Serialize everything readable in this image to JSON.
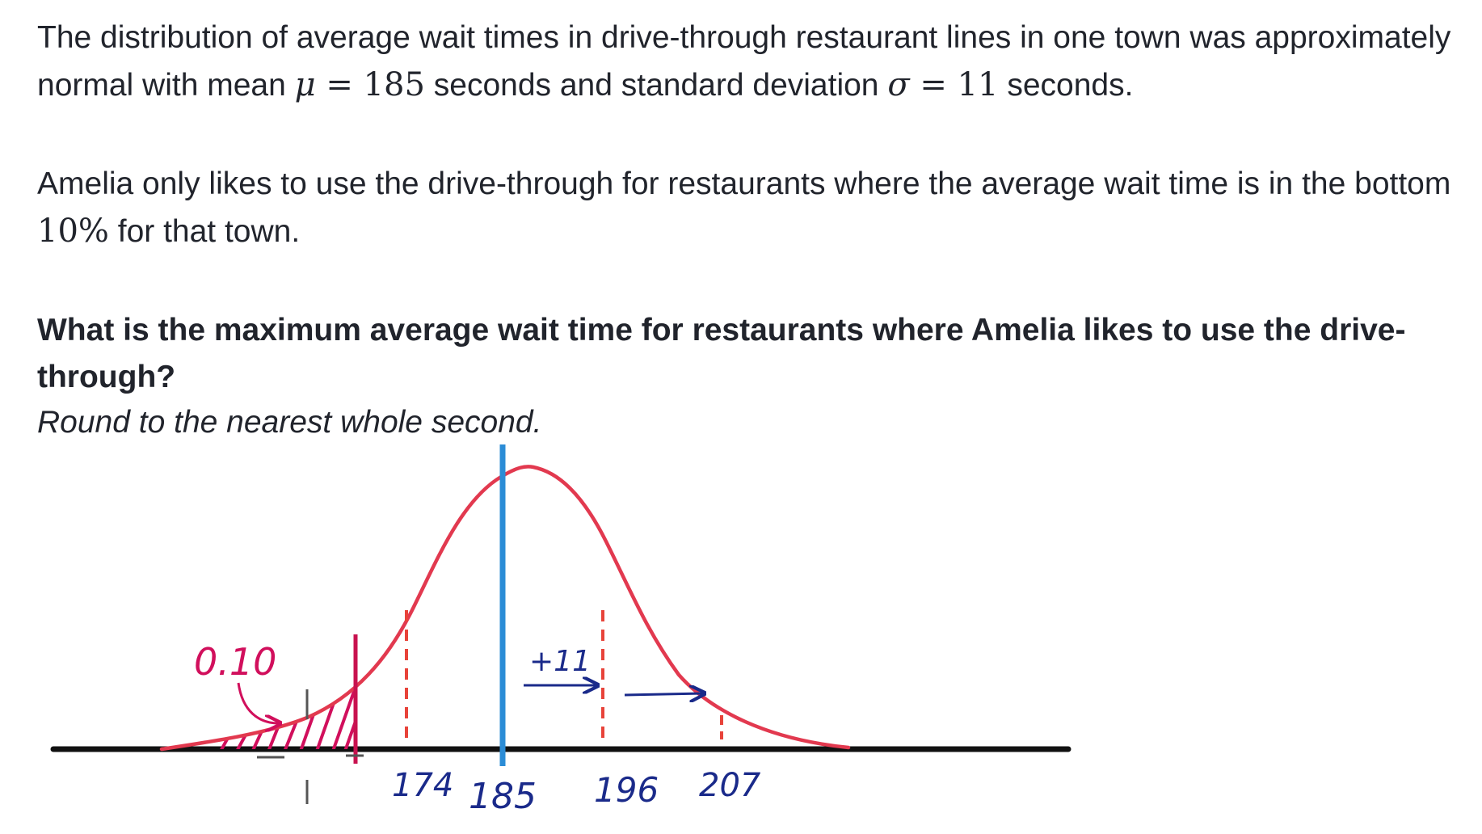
{
  "problem": {
    "p1": {
      "text_a": "The distribution of average wait times in drive-through restaurant lines in one town was approximately normal with mean ",
      "mu_symbol": "μ",
      "eq1": " = 185",
      "text_b": " seconds and standard deviation ",
      "sigma_symbol": "σ",
      "eq2": " = 11",
      "text_c": " seconds."
    },
    "p2": {
      "text_a": "Amelia only likes to use the drive-through for restaurants where the average wait time is in the bottom ",
      "percent": "10%",
      "text_b": " for that town."
    },
    "question": "What is the maximum average wait time for restaurants where Amelia likes to use the drive-through?",
    "hint": "Round to the nearest whole second."
  },
  "sketch": {
    "mean": 185,
    "sd": 11,
    "area_label": "0.10",
    "step_label": "+11",
    "tick_labels": [
      "174",
      "185",
      "196",
      "207"
    ],
    "colors": {
      "curve": "#e2394f",
      "mean_line": "#2b8cd6",
      "sd_lines": "#e8433a",
      "cutoff": "#c8124f",
      "annotation": "#d10f5c",
      "arrows": "#1a2a8a",
      "axis": "#111111"
    }
  }
}
